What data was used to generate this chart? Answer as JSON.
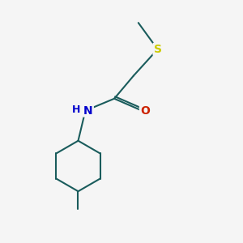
{
  "background_color": "#f5f5f5",
  "bond_color": "#1a5c5c",
  "S_color": "#cccc00",
  "N_color": "#0000cc",
  "O_color": "#cc2200",
  "line_width": 1.5,
  "figsize": [
    3.0,
    3.0
  ],
  "dpi": 100,
  "xlim": [
    0,
    10
  ],
  "ylim": [
    0,
    10
  ],
  "S_label": "S",
  "O_label": "O",
  "N_label": "N",
  "H_label": "H",
  "font_size_atom": 10
}
